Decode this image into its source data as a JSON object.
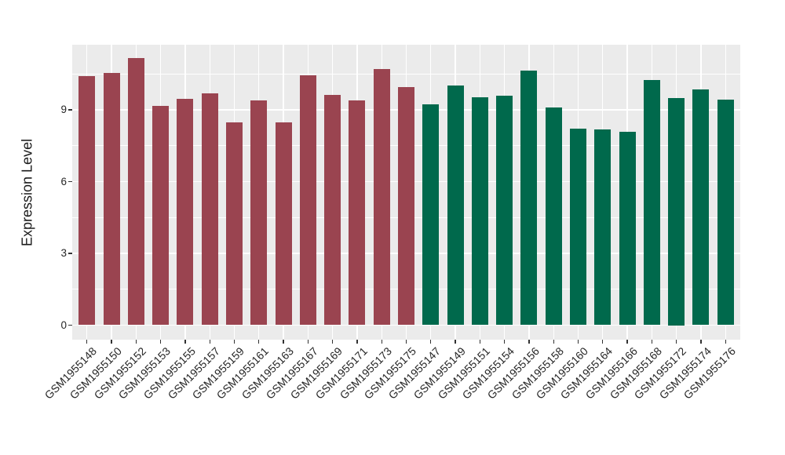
{
  "chart_data": {
    "type": "bar",
    "title": "",
    "ylabel": "Expression Level",
    "xlabel": "",
    "ylim": [
      0,
      11.7
    ],
    "yticks": [
      0,
      3,
      6,
      9
    ],
    "yminor_ticks": [
      1.5,
      4.5,
      7.5,
      10.5
    ],
    "grid": "on",
    "legend_position": "none",
    "panel_bg": "#EBEBEB",
    "grid_color": "#FFFFFF",
    "series": [
      {
        "name": "left-group-red",
        "color": "#9A4450",
        "points": [
          {
            "label": "GSM1955148",
            "value": 10.4
          },
          {
            "label": "GSM1955150",
            "value": 10.54
          },
          {
            "label": "GSM1955152",
            "value": 11.16
          },
          {
            "label": "GSM1955153",
            "value": 9.18
          },
          {
            "label": "GSM1955155",
            "value": 9.45
          },
          {
            "label": "GSM1955157",
            "value": 9.68
          },
          {
            "label": "GSM1955159",
            "value": 8.46
          },
          {
            "label": "GSM1955161",
            "value": 9.38
          },
          {
            "label": "GSM1955163",
            "value": 8.46
          },
          {
            "label": "GSM1955167",
            "value": 10.45
          },
          {
            "label": "GSM1955169",
            "value": 9.62
          },
          {
            "label": "GSM1955171",
            "value": 9.4
          },
          {
            "label": "GSM1955173",
            "value": 10.7
          },
          {
            "label": "GSM1955175",
            "value": 9.96
          }
        ]
      },
      {
        "name": "right-group-green",
        "color": "#00694C",
        "points": [
          {
            "label": "GSM1955147",
            "value": 9.24
          },
          {
            "label": "GSM1955149",
            "value": 10.01
          },
          {
            "label": "GSM1955151",
            "value": 9.51
          },
          {
            "label": "GSM1955154",
            "value": 9.58
          },
          {
            "label": "GSM1955156",
            "value": 10.64
          },
          {
            "label": "GSM1955158",
            "value": 9.09
          },
          {
            "label": "GSM1955160",
            "value": 8.21
          },
          {
            "label": "GSM1955164",
            "value": 8.17
          },
          {
            "label": "GSM1955166",
            "value": 8.07
          },
          {
            "label": "GSM1955168",
            "value": 10.23
          },
          {
            "label": "GSM1955172",
            "value": 9.5
          },
          {
            "label": "GSM1955174",
            "value": 9.84
          },
          {
            "label": "GSM1955176",
            "value": 9.43
          }
        ]
      }
    ]
  }
}
